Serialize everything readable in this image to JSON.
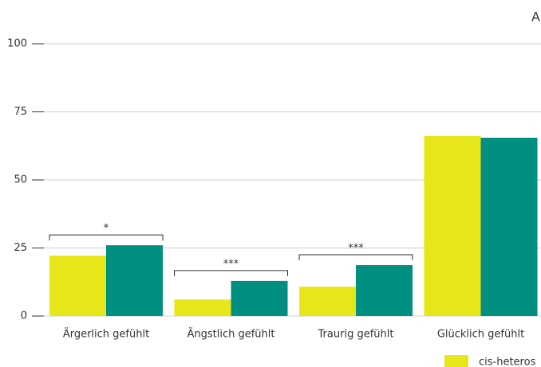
{
  "chart_data": {
    "type": "bar",
    "title": "A",
    "categories": [
      "Ärgerlich gefühlt",
      "Ängstlich gefühlt",
      "Traurig gefühlt",
      "Glücklich gefühlt"
    ],
    "series": [
      {
        "name": "cis-heteros",
        "color": "#e6e619",
        "values": [
          22.2,
          6.1,
          10.8,
          66.1
        ]
      },
      {
        "color": "#008f80",
        "values": [
          26,
          12.9,
          18.7,
          65.5
        ]
      }
    ],
    "significance": [
      "*",
      "***",
      "***",
      null
    ],
    "ylim": [
      0,
      100
    ],
    "yticks": [
      0,
      25,
      50,
      75,
      100
    ],
    "grid": true
  }
}
